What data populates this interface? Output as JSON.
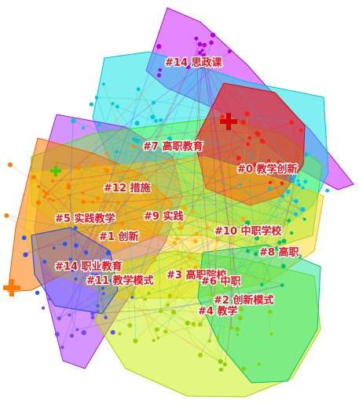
{
  "clusters": [
    {
      "id": "#0",
      "name": "教学创新",
      "color": "#ff1a1a"
    },
    {
      "id": "#1",
      "name": "创新",
      "color": "#ff8a00"
    },
    {
      "id": "#2",
      "name": "创新模式",
      "color": "#c8ee00"
    },
    {
      "id": "#3",
      "name": "高职院校",
      "color": "#ffb000"
    },
    {
      "id": "#4",
      "name": "教学",
      "color": "#aaff33"
    },
    {
      "id": "#5",
      "name": "实践教学",
      "color": "#ffd000"
    },
    {
      "id": "#6",
      "name": "中职",
      "color": "#33ee66"
    },
    {
      "id": "#7",
      "name": "高职教育",
      "color": "#66ff33"
    },
    {
      "id": "#8",
      "name": "高职",
      "color": "#00e0d0"
    },
    {
      "id": "#9",
      "name": "实践",
      "color": "#e6e600"
    },
    {
      "id": "#10",
      "name": "中职学校",
      "color": "#00d8ff"
    },
    {
      "id": "#11",
      "name": "教学模式",
      "color": "#2d52ff"
    },
    {
      "id": "#12",
      "name": "措施",
      "color": "#ff7a00"
    },
    {
      "id": "#13",
      "name": "职业教育",
      "color": "#cc22ff"
    },
    {
      "id": "#14",
      "name": "思政课",
      "color": "#6a4bff"
    }
  ]
}
